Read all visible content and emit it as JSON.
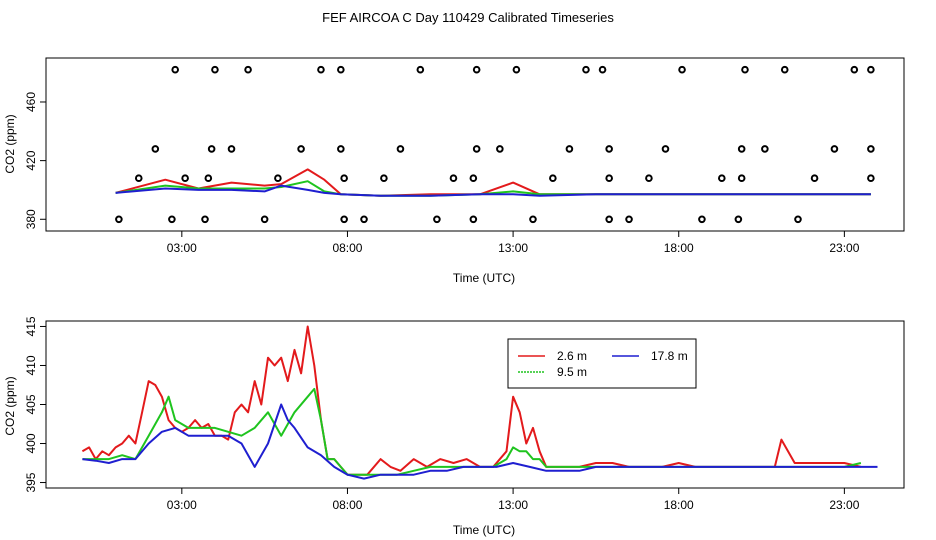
{
  "title": "FEF AIRCOA C  Day 110429  Calibrated Timeseries",
  "colors": {
    "red": "#e31a1c",
    "green": "#1fc41f",
    "blue": "#1f1fd0",
    "axis": "#000000"
  },
  "chart_data": [
    {
      "type": "scatter",
      "ylabel": "CO2 (ppm)",
      "xlabel": "Time (UTC)",
      "xlim": [
        -1.1,
        24.8
      ],
      "ylim": [
        372,
        490
      ],
      "x_ticks": [
        {
          "v": 3,
          "label": "03:00"
        },
        {
          "v": 8,
          "label": "08:00"
        },
        {
          "v": 13,
          "label": "13:00"
        },
        {
          "v": 18,
          "label": "18:00"
        },
        {
          "v": 23,
          "label": "23:00"
        }
      ],
      "y_ticks": [
        {
          "v": 380,
          "label": "380"
        },
        {
          "v": 420,
          "label": "420"
        },
        {
          "v": 460,
          "label": "460"
        }
      ],
      "flag_points": [
        [
          1.1,
          380
        ],
        [
          2.7,
          380
        ],
        [
          3.7,
          380
        ],
        [
          5.5,
          380
        ],
        [
          7.9,
          380
        ],
        [
          8.5,
          380
        ],
        [
          10.7,
          380
        ],
        [
          11.8,
          380
        ],
        [
          13.6,
          380
        ],
        [
          15.9,
          380
        ],
        [
          16.5,
          380
        ],
        [
          18.7,
          380
        ],
        [
          19.8,
          380
        ],
        [
          21.6,
          380
        ],
        [
          1.7,
          408
        ],
        [
          3.1,
          408
        ],
        [
          3.8,
          408
        ],
        [
          5.9,
          408
        ],
        [
          7.9,
          408
        ],
        [
          9.1,
          408
        ],
        [
          11.2,
          408
        ],
        [
          11.8,
          408
        ],
        [
          14.2,
          408
        ],
        [
          15.9,
          408
        ],
        [
          17.1,
          408
        ],
        [
          19.3,
          408
        ],
        [
          19.9,
          408
        ],
        [
          22.1,
          408
        ],
        [
          23.8,
          408
        ],
        [
          2.2,
          428
        ],
        [
          3.9,
          428
        ],
        [
          4.5,
          428
        ],
        [
          6.6,
          428
        ],
        [
          7.8,
          428
        ],
        [
          9.6,
          428
        ],
        [
          11.9,
          428
        ],
        [
          12.6,
          428
        ],
        [
          14.7,
          428
        ],
        [
          15.9,
          428
        ],
        [
          17.6,
          428
        ],
        [
          19.9,
          428
        ],
        [
          20.6,
          428
        ],
        [
          22.7,
          428
        ],
        [
          23.8,
          428
        ],
        [
          2.8,
          482
        ],
        [
          4.0,
          482
        ],
        [
          5.0,
          482
        ],
        [
          7.2,
          482
        ],
        [
          7.8,
          482
        ],
        [
          10.2,
          482
        ],
        [
          11.9,
          482
        ],
        [
          13.1,
          482
        ],
        [
          15.2,
          482
        ],
        [
          15.7,
          482
        ],
        [
          18.1,
          482
        ],
        [
          20.0,
          482
        ],
        [
          21.2,
          482
        ],
        [
          23.3,
          482
        ],
        [
          23.8,
          482
        ]
      ],
      "series": [
        {
          "name": "2.6 m",
          "color": "#e31a1c",
          "x": [
            1.0,
            2.5,
            3.5,
            4.5,
            5.5,
            6.0,
            6.8,
            7.3,
            7.8,
            9.0,
            10.5,
            12.0,
            13.0,
            13.8,
            15.5,
            18.0,
            20.5,
            22.0,
            23.8
          ],
          "y": [
            398,
            407,
            401,
            405,
            403,
            404,
            414,
            407,
            397,
            396,
            397,
            397,
            405,
            397,
            397,
            397,
            397,
            397,
            397
          ]
        },
        {
          "name": "9.5 m",
          "color": "#1fc41f",
          "x": [
            1.0,
            2.5,
            3.5,
            4.5,
            5.5,
            6.0,
            6.8,
            7.3,
            7.8,
            9.0,
            10.5,
            12.0,
            13.0,
            13.8,
            15.5,
            18.0,
            20.5,
            22.0,
            23.8
          ],
          "y": [
            398,
            403,
            401,
            401,
            401,
            402,
            406,
            399,
            397,
            396,
            396,
            397,
            399,
            397,
            397,
            397,
            397,
            397,
            397
          ]
        },
        {
          "name": "17.8 m",
          "color": "#1f1fd0",
          "x": [
            1.0,
            2.5,
            3.5,
            4.5,
            5.5,
            6.0,
            6.8,
            7.3,
            7.8,
            9.0,
            10.5,
            12.0,
            13.0,
            13.8,
            15.5,
            18.0,
            20.5,
            22.0,
            23.8
          ],
          "y": [
            398,
            401,
            400,
            400,
            399,
            403,
            400,
            398,
            397,
            396,
            396,
            397,
            397,
            396,
            397,
            397,
            397,
            397,
            397
          ]
        }
      ]
    },
    {
      "type": "line",
      "ylabel": "CO2 (ppm)",
      "xlabel": "Time (UTC)",
      "xlim": [
        -1.1,
        24.8
      ],
      "ylim": [
        394.3,
        415.7
      ],
      "x_ticks": [
        {
          "v": 3,
          "label": "03:00"
        },
        {
          "v": 8,
          "label": "08:00"
        },
        {
          "v": 13,
          "label": "13:00"
        },
        {
          "v": 18,
          "label": "18:00"
        },
        {
          "v": 23,
          "label": "23:00"
        }
      ],
      "y_ticks": [
        {
          "v": 395,
          "label": "395"
        },
        {
          "v": 400,
          "label": "400"
        },
        {
          "v": 405,
          "label": "405"
        },
        {
          "v": 410,
          "label": "410"
        },
        {
          "v": 415,
          "label": "415"
        }
      ],
      "legend": "top-center",
      "series": [
        {
          "name": "2.6 m",
          "color": "#e31a1c",
          "x": [
            0.0,
            0.2,
            0.4,
            0.6,
            0.8,
            1.0,
            1.2,
            1.4,
            1.6,
            1.8,
            2.0,
            2.2,
            2.4,
            2.6,
            2.8,
            3.0,
            3.2,
            3.4,
            3.6,
            3.8,
            4.0,
            4.2,
            4.4,
            4.6,
            4.8,
            5.0,
            5.2,
            5.4,
            5.6,
            5.8,
            6.0,
            6.2,
            6.4,
            6.6,
            6.8,
            7.0,
            7.2,
            7.4,
            7.6,
            7.8,
            8.0,
            8.3,
            8.6,
            9.0,
            9.3,
            9.6,
            10.0,
            10.4,
            10.8,
            11.2,
            11.6,
            12.0,
            12.4,
            12.8,
            13.0,
            13.2,
            13.4,
            13.6,
            13.8,
            14.0,
            14.4,
            15.0,
            15.5,
            16.0,
            16.5,
            17.0,
            17.5,
            18.0,
            18.5,
            19.0,
            19.5,
            20.0,
            20.5,
            20.9,
            21.1,
            21.5,
            22.0,
            22.5,
            23.0,
            23.5
          ],
          "y": [
            399,
            399.5,
            398,
            399,
            398.5,
            399.5,
            400,
            401,
            400,
            404,
            408,
            407.5,
            406,
            403,
            402,
            401.5,
            402,
            403,
            402,
            402.5,
            401,
            401,
            400.5,
            404,
            405,
            404,
            408,
            405,
            411,
            410,
            411,
            408,
            412,
            409,
            415,
            410,
            403,
            398,
            398,
            397,
            396,
            396,
            396,
            398,
            397,
            396.5,
            398,
            397,
            398,
            397.5,
            398,
            397,
            397,
            399,
            406,
            404,
            400,
            402,
            399,
            397,
            397,
            397,
            397.5,
            397.5,
            397,
            397,
            397,
            397.5,
            397,
            397,
            397,
            397,
            397,
            397,
            400.5,
            397.5,
            397.5,
            397.5,
            397.5,
            397
          ]
        },
        {
          "name": "9.5 m",
          "color": "#1fc41f",
          "x": [
            0.0,
            0.4,
            0.8,
            1.2,
            1.6,
            2.0,
            2.4,
            2.6,
            2.8,
            3.2,
            3.6,
            4.0,
            4.4,
            4.8,
            5.2,
            5.6,
            6.0,
            6.4,
            6.8,
            7.0,
            7.2,
            7.4,
            7.6,
            7.8,
            8.0,
            8.5,
            9.0,
            9.5,
            10.0,
            10.5,
            11.0,
            11.5,
            12.0,
            12.4,
            12.8,
            13.0,
            13.2,
            13.4,
            13.6,
            13.8,
            14.0,
            14.5,
            15.0,
            15.5,
            16.0,
            17.0,
            18.0,
            19.0,
            20.0,
            21.0,
            22.0,
            23.0,
            23.5
          ],
          "y": [
            398,
            398,
            398,
            398.5,
            398,
            401,
            404,
            406,
            403,
            402,
            402,
            402,
            401.5,
            401,
            402,
            404,
            401,
            404,
            406,
            407,
            403,
            398,
            398,
            397,
            396,
            396,
            396,
            396,
            396.5,
            397,
            397,
            397,
            397,
            397,
            398,
            399.5,
            399,
            399,
            398,
            398,
            397,
            397,
            397,
            397,
            397,
            397,
            397,
            397,
            397,
            397,
            397,
            397,
            397.5
          ]
        },
        {
          "name": "17.8 m",
          "color": "#1f1fd0",
          "x": [
            0.0,
            0.4,
            0.8,
            1.2,
            1.6,
            2.0,
            2.4,
            2.8,
            3.2,
            3.6,
            4.0,
            4.4,
            4.8,
            5.2,
            5.6,
            6.0,
            6.2,
            6.4,
            6.8,
            7.2,
            7.6,
            8.0,
            8.5,
            9.0,
            9.5,
            10.0,
            10.5,
            11.0,
            11.5,
            12.0,
            12.5,
            13.0,
            13.5,
            14.0,
            14.5,
            15.0,
            15.5,
            16.0,
            17.0,
            18.0,
            19.0,
            20.0,
            21.0,
            22.0,
            23.0,
            24.0
          ],
          "y": [
            398,
            397.8,
            397.5,
            398,
            398,
            400,
            401.5,
            402,
            401,
            401,
            401,
            401,
            400,
            397,
            400,
            405,
            403,
            402,
            399.5,
            398.5,
            397,
            396,
            395.5,
            396,
            396,
            396,
            396.5,
            396.5,
            397,
            397,
            397,
            397.5,
            397,
            396.5,
            396.5,
            396.5,
            397,
            397,
            397,
            397,
            397,
            397,
            397,
            397,
            397,
            397
          ]
        }
      ]
    }
  ]
}
